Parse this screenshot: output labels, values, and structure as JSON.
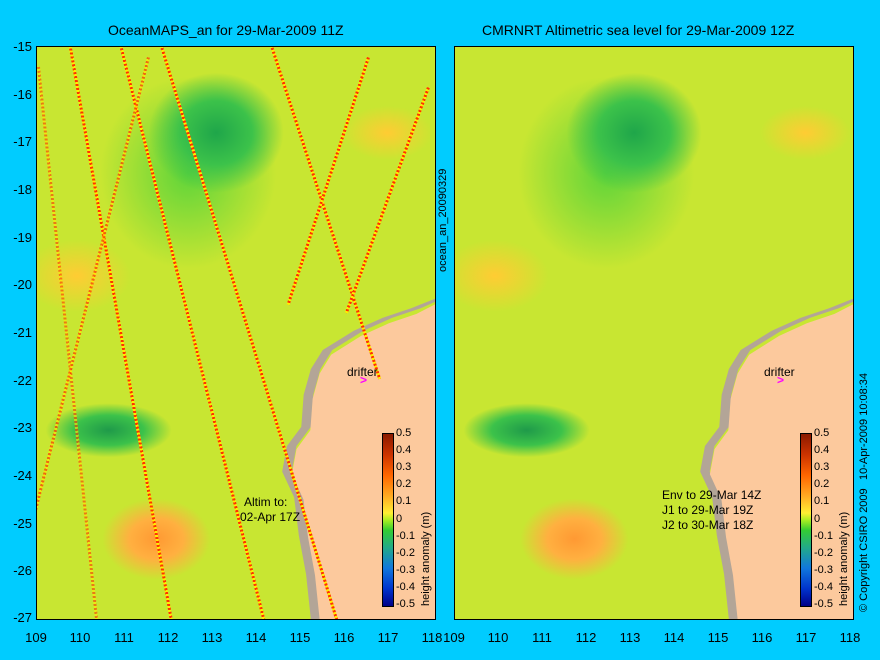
{
  "left_panel": {
    "title": "OceanMAPS_an for 29-Mar-2009 11Z",
    "altim_label": "Altim to:",
    "altim_date": "02-Apr 17Z",
    "drifter_label": "drifter",
    "side_label": "ocean_an_20090329"
  },
  "right_panel": {
    "title": "CMRNRT Altimetric sea level  for 29-Mar-2009 12Z",
    "env_line": "Env to 29-Mar 14Z",
    "j1_line": "J1 to 29-Mar 19Z",
    "j2_line": "J2 to 30-Mar 18Z",
    "drifter_label": "drifter",
    "copyright": "© Copyright CSIRO 2009",
    "timestamp": "10-Apr-2009 10:08:34"
  },
  "axes": {
    "y_ticks": [
      "-15",
      "-16",
      "-17",
      "-18",
      "-19",
      "-20",
      "-21",
      "-22",
      "-23",
      "-24",
      "-25",
      "-26",
      "-27"
    ],
    "x_ticks": [
      "109",
      "110",
      "111",
      "112",
      "113",
      "114",
      "115",
      "116",
      "117",
      "118"
    ]
  },
  "colorbar": {
    "label": "height anomaly (m)",
    "ticks": [
      "0.5",
      "0.4",
      "0.3",
      "0.2",
      "0.1",
      "0",
      "-0.1",
      "-0.2",
      "-0.3",
      "-0.4",
      "-0.5"
    ]
  },
  "colors": {
    "background": "#00ccff",
    "land": "#fcc99d",
    "drifter": "#ff00ff"
  }
}
